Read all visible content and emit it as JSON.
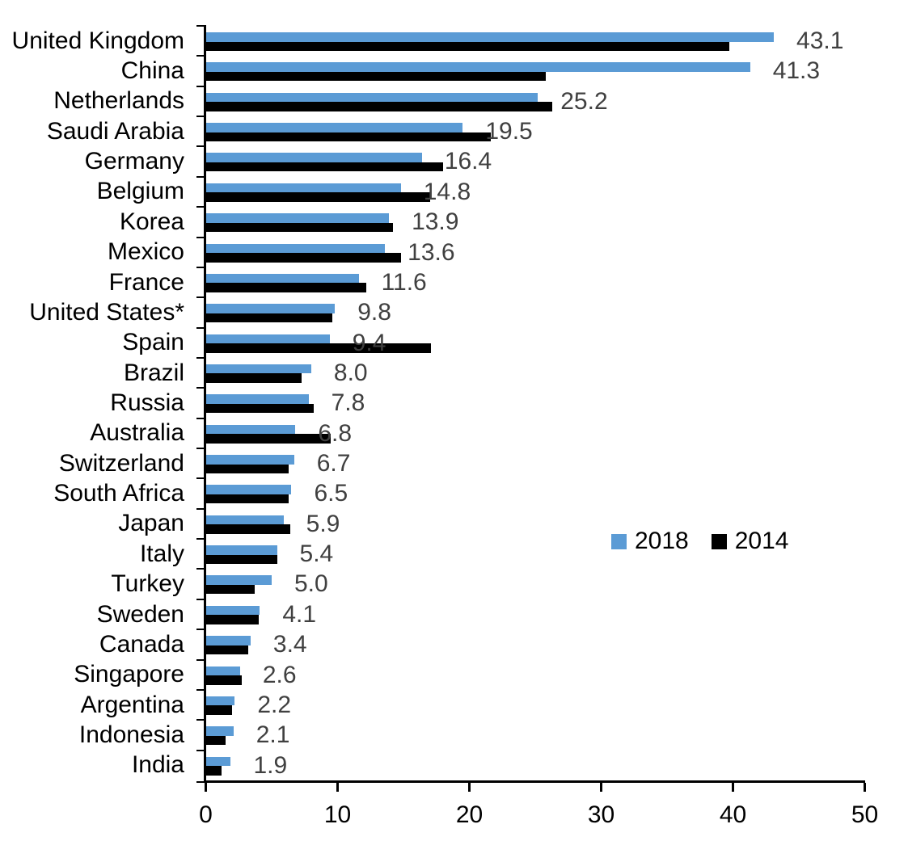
{
  "chart_data": {
    "type": "bar",
    "orientation": "horizontal",
    "categories": [
      "United Kingdom",
      "China",
      "Netherlands",
      "Saudi Arabia",
      "Germany",
      "Belgium",
      "Korea",
      "Mexico",
      "France",
      "United States*",
      "Spain",
      "Brazil",
      "Russia",
      "Australia",
      "Switzerland",
      "South Africa",
      "Japan",
      "Italy",
      "Turkey",
      "Sweden",
      "Canada",
      "Singapore",
      "Argentina",
      "Indonesia",
      "India"
    ],
    "series": [
      {
        "name": "2018",
        "color": "#5B9BD5",
        "values": [
          43.1,
          41.3,
          25.2,
          19.5,
          16.4,
          14.8,
          13.9,
          13.6,
          11.6,
          9.8,
          9.4,
          8.0,
          7.8,
          6.8,
          6.7,
          6.5,
          5.9,
          5.4,
          5.0,
          4.1,
          3.4,
          2.6,
          2.2,
          2.1,
          1.9
        ]
      },
      {
        "name": "2014",
        "color": "#000000",
        "values": [
          39.7,
          25.8,
          26.3,
          21.6,
          18.0,
          17.0,
          14.2,
          14.8,
          12.2,
          9.6,
          17.1,
          7.3,
          8.2,
          9.5,
          6.3,
          6.3,
          6.4,
          5.4,
          3.7,
          4.0,
          3.2,
          2.7,
          2.0,
          1.5,
          1.2
        ]
      }
    ],
    "data_labels": [
      "43.1",
      "41.3",
      "25.2",
      "19.5",
      "16.4",
      "14.8",
      "13.9",
      "13.6",
      "11.6",
      "9.8",
      "9.4",
      "8.0",
      "7.8",
      "6.8",
      "6.7",
      "6.5",
      "5.9",
      "5.4",
      "5.0",
      "4.1",
      "3.4",
      "2.6",
      "2.2",
      "2.1",
      "1.9"
    ],
    "data_labels_series": "2018",
    "data_label_color": "#404040",
    "xlabel": "",
    "ylabel": "",
    "title": "",
    "xlim": [
      0,
      50
    ],
    "x_ticks": [
      "0",
      "10",
      "20",
      "30",
      "40",
      "50"
    ],
    "grid": false,
    "legend": {
      "position": "middle-right",
      "items": [
        {
          "label": "2018",
          "color": "#5B9BD5"
        },
        {
          "label": "2014",
          "color": "#000000"
        }
      ]
    }
  }
}
